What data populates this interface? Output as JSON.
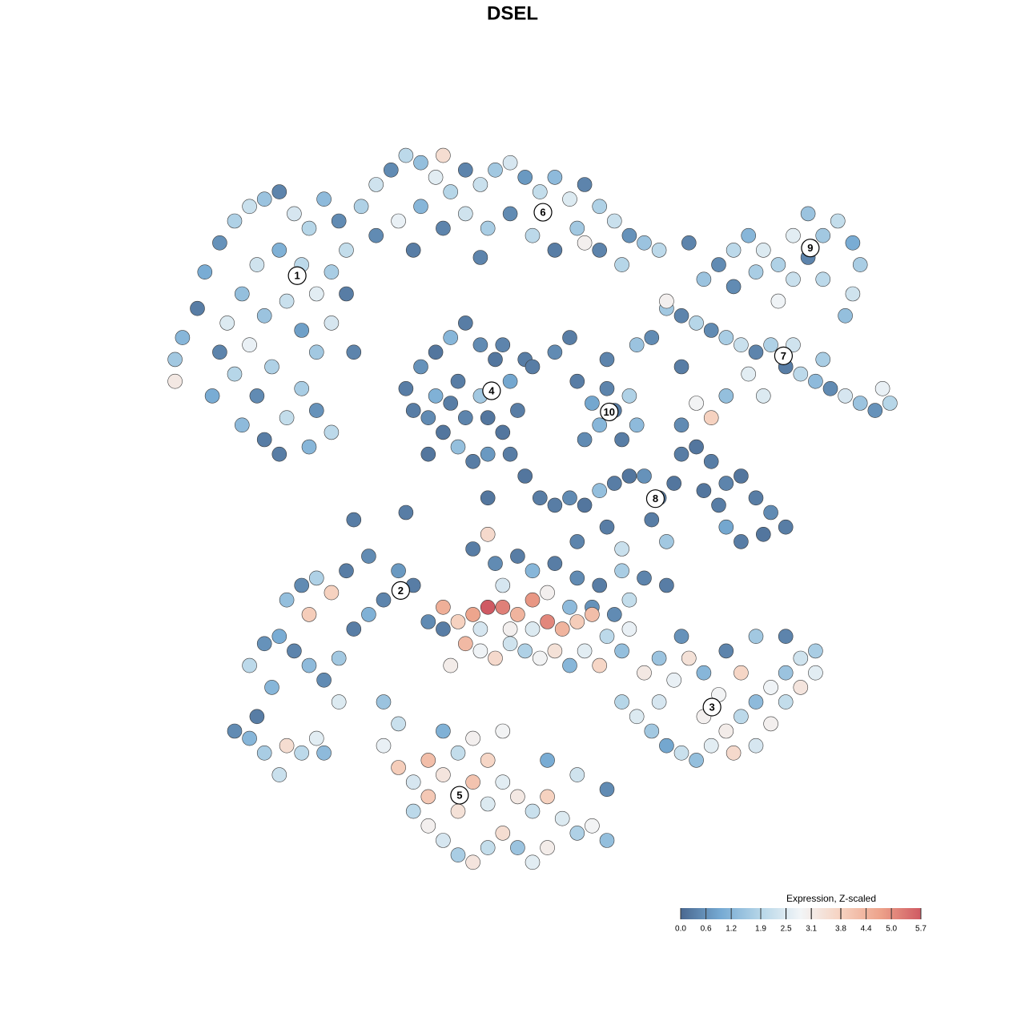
{
  "chart_data": {
    "type": "scatter",
    "title": "DSEL",
    "xlim": [
      0,
      100
    ],
    "ylim": [
      0,
      100
    ],
    "colorscale": {
      "title": "Expression, Z-scaled",
      "range": [
        0,
        5.7
      ],
      "colors": [
        "#4a6890",
        "#76aad3",
        "#b6d6e8",
        "#f2f5f7",
        "#f6d2c0",
        "#eda28a",
        "#cf5a63"
      ],
      "ticks": [
        {
          "value": 0,
          "label": "0.0"
        },
        0.6,
        1.2,
        1.9,
        2.5,
        3.1,
        3.8,
        4.4,
        {
          "value": 5,
          "label": "5.0"
        },
        5.7
      ]
    },
    "annotations": [
      {
        "text": "1",
        "x": 18.4,
        "y": 82.5
      },
      {
        "text": "2",
        "x": 32.3,
        "y": 39.3
      },
      {
        "text": "3",
        "x": 74.1,
        "y": 23.3
      },
      {
        "text": "4",
        "x": 44.5,
        "y": 66.7
      },
      {
        "text": "5",
        "x": 40.2,
        "y": 11.2
      },
      {
        "text": "6",
        "x": 51.4,
        "y": 91.2
      },
      {
        "text": "7",
        "x": 83.7,
        "y": 71.5
      },
      {
        "text": "8",
        "x": 66.5,
        "y": 51.9
      },
      {
        "text": "9",
        "x": 87.3,
        "y": 86.3
      },
      {
        "text": "10",
        "x": 60.3,
        "y": 63.8
      }
    ],
    "points": [
      [
        3,
        74,
        1.2
      ],
      [
        5,
        78,
        0.3
      ],
      [
        2,
        71,
        1.6
      ],
      [
        6,
        83,
        1.0
      ],
      [
        8,
        87,
        0.6
      ],
      [
        10,
        90,
        1.8
      ],
      [
        12,
        92,
        2.2
      ],
      [
        14,
        93,
        1.5
      ],
      [
        16,
        94,
        0.4
      ],
      [
        18,
        91,
        2.4
      ],
      [
        20,
        89,
        1.9
      ],
      [
        22,
        93,
        1.3
      ],
      [
        24,
        90,
        0.5
      ],
      [
        25,
        86,
        2.1
      ],
      [
        23,
        83,
        1.7
      ],
      [
        21,
        80,
        2.6
      ],
      [
        19,
        84,
        2.0
      ],
      [
        16,
        86,
        1.1
      ],
      [
        13,
        84,
        2.3
      ],
      [
        11,
        80,
        1.4
      ],
      [
        9,
        76,
        2.5
      ],
      [
        8,
        72,
        0.4
      ],
      [
        10,
        69,
        1.9
      ],
      [
        12,
        73,
        2.7
      ],
      [
        14,
        77,
        1.5
      ],
      [
        17,
        79,
        2.2
      ],
      [
        19,
        75,
        0.8
      ],
      [
        21,
        72,
        1.6
      ],
      [
        23,
        76,
        2.4
      ],
      [
        25,
        80,
        0.3
      ],
      [
        15,
        70,
        1.8
      ],
      [
        13,
        66,
        0.5
      ],
      [
        11,
        62,
        1.3
      ],
      [
        14,
        60,
        0.3
      ],
      [
        17,
        63,
        2.1
      ],
      [
        19,
        67,
        1.7
      ],
      [
        21,
        64,
        0.6
      ],
      [
        23,
        61,
        2.0
      ],
      [
        16,
        58,
        0.3
      ],
      [
        20,
        59,
        1.2
      ],
      [
        2,
        68,
        3.2
      ],
      [
        7,
        66,
        1.0
      ],
      [
        26,
        72,
        0.4
      ],
      [
        27,
        92,
        1.8
      ],
      [
        29,
        95,
        2.3
      ],
      [
        31,
        97,
        0.5
      ],
      [
        33,
        99,
        2.0
      ],
      [
        35,
        98,
        1.4
      ],
      [
        37,
        96,
        2.6
      ],
      [
        39,
        94,
        1.9
      ],
      [
        41,
        97,
        0.4
      ],
      [
        43,
        95,
        2.2
      ],
      [
        45,
        97,
        1.6
      ],
      [
        47,
        98,
        2.4
      ],
      [
        49,
        96,
        0.7
      ],
      [
        51,
        94,
        2.1
      ],
      [
        53,
        96,
        1.3
      ],
      [
        55,
        93,
        2.5
      ],
      [
        57,
        95,
        0.4
      ],
      [
        59,
        92,
        1.8
      ],
      [
        61,
        90,
        2.2
      ],
      [
        63,
        88,
        0.6
      ],
      [
        65,
        87,
        1.5
      ],
      [
        67,
        86,
        2.0
      ],
      [
        29,
        88,
        0.5
      ],
      [
        32,
        90,
        2.7
      ],
      [
        35,
        92,
        1.2
      ],
      [
        38,
        89,
        0.4
      ],
      [
        41,
        91,
        2.3
      ],
      [
        44,
        89,
        1.7
      ],
      [
        47,
        91,
        0.5
      ],
      [
        50,
        88,
        2.0
      ],
      [
        53,
        86,
        0.3
      ],
      [
        56,
        89,
        1.6
      ],
      [
        59,
        86,
        0.4
      ],
      [
        62,
        84,
        1.9
      ],
      [
        34,
        86,
        0.3
      ],
      [
        43,
        85,
        0.4
      ],
      [
        38,
        99,
        3.5
      ],
      [
        57,
        87,
        3.0
      ],
      [
        33,
        67,
        0.3
      ],
      [
        35,
        70,
        0.6
      ],
      [
        37,
        72,
        0.2
      ],
      [
        39,
        74,
        1.2
      ],
      [
        41,
        76,
        0.3
      ],
      [
        43,
        73,
        0.5
      ],
      [
        45,
        71,
        0.2
      ],
      [
        47,
        68,
        0.9
      ],
      [
        48,
        64,
        0.3
      ],
      [
        46,
        61,
        0.2
      ],
      [
        44,
        58,
        0.7
      ],
      [
        42,
        57,
        0.3
      ],
      [
        40,
        59,
        1.4
      ],
      [
        38,
        61,
        0.2
      ],
      [
        36,
        63,
        0.5
      ],
      [
        34,
        64,
        0.3
      ],
      [
        37,
        66,
        1.1
      ],
      [
        40,
        68,
        0.3
      ],
      [
        43,
        66,
        1.6
      ],
      [
        41,
        63,
        0.4
      ],
      [
        44,
        63,
        0.2
      ],
      [
        39,
        65,
        0.3
      ],
      [
        36,
        58,
        0.2
      ],
      [
        46,
        73,
        0.4
      ],
      [
        49,
        71,
        0.3
      ],
      [
        50,
        70,
        0.3
      ],
      [
        53,
        72,
        0.5
      ],
      [
        55,
        74,
        0.3
      ],
      [
        47,
        58,
        0.3
      ],
      [
        49,
        55,
        0.2
      ],
      [
        51,
        52,
        0.3
      ],
      [
        44,
        52,
        0.2
      ],
      [
        26,
        49,
        0.3
      ],
      [
        33,
        50,
        0.3
      ],
      [
        57,
        60,
        0.5
      ],
      [
        59,
        62,
        1.2
      ],
      [
        61,
        64,
        0.3
      ],
      [
        63,
        66,
        1.8
      ],
      [
        60,
        67,
        0.4
      ],
      [
        58,
        65,
        0.9
      ],
      [
        62,
        60,
        0.3
      ],
      [
        64,
        62,
        1.3
      ],
      [
        56,
        68,
        0.3
      ],
      [
        60,
        71,
        0.4
      ],
      [
        64,
        73,
        1.5
      ],
      [
        68,
        78,
        1.6
      ],
      [
        70,
        77,
        0.4
      ],
      [
        72,
        76,
        1.9
      ],
      [
        74,
        75,
        0.5
      ],
      [
        76,
        74,
        1.7
      ],
      [
        78,
        73,
        2.2
      ],
      [
        80,
        72,
        0.4
      ],
      [
        82,
        73,
        1.8
      ],
      [
        84,
        70,
        0.3
      ],
      [
        86,
        69,
        2.0
      ],
      [
        88,
        68,
        1.3
      ],
      [
        90,
        67,
        0.5
      ],
      [
        92,
        66,
        2.4
      ],
      [
        94,
        65,
        1.5
      ],
      [
        96,
        64,
        0.6
      ],
      [
        98,
        65,
        1.9
      ],
      [
        97,
        67,
        2.7
      ],
      [
        89,
        71,
        1.7
      ],
      [
        85,
        73,
        2.3
      ],
      [
        79,
        69,
        2.6
      ],
      [
        76,
        66,
        1.4
      ],
      [
        72,
        65,
        2.9
      ],
      [
        74,
        63,
        3.8
      ],
      [
        70,
        70,
        0.3
      ],
      [
        66,
        74,
        0.5
      ],
      [
        81,
        66,
        2.5
      ],
      [
        73,
        82,
        1.5
      ],
      [
        75,
        84,
        0.5
      ],
      [
        77,
        86,
        2.0
      ],
      [
        79,
        88,
        1.2
      ],
      [
        81,
        86,
        2.5
      ],
      [
        83,
        84,
        1.8
      ],
      [
        85,
        82,
        2.2
      ],
      [
        87,
        85,
        0.4
      ],
      [
        89,
        88,
        1.6
      ],
      [
        91,
        90,
        2.1
      ],
      [
        93,
        87,
        1.0
      ],
      [
        94,
        84,
        1.7
      ],
      [
        93,
        80,
        2.3
      ],
      [
        92,
        77,
        1.4
      ],
      [
        89,
        82,
        2.0
      ],
      [
        87,
        91,
        1.5
      ],
      [
        85,
        88,
        2.6
      ],
      [
        80,
        83,
        1.7
      ],
      [
        77,
        81,
        0.5
      ],
      [
        83,
        79,
        2.8
      ],
      [
        71,
        87,
        0.4
      ],
      [
        68,
        79,
        3.0
      ],
      [
        53,
        51,
        0.3
      ],
      [
        55,
        52,
        0.5
      ],
      [
        57,
        51,
        0.2
      ],
      [
        59,
        53,
        1.4
      ],
      [
        61,
        54,
        0.3
      ],
      [
        63,
        55,
        0.2
      ],
      [
        65,
        55,
        0.6
      ],
      [
        67,
        52,
        0.3
      ],
      [
        69,
        54,
        0.2
      ],
      [
        70,
        58,
        0.3
      ],
      [
        70,
        62,
        0.5
      ],
      [
        72,
        59,
        0.2
      ],
      [
        74,
        57,
        0.3
      ],
      [
        76,
        54,
        0.4
      ],
      [
        78,
        55,
        0.2
      ],
      [
        80,
        52,
        0.3
      ],
      [
        82,
        50,
        0.5
      ],
      [
        84,
        48,
        0.3
      ],
      [
        81,
        47,
        0.2
      ],
      [
        78,
        46,
        0.3
      ],
      [
        76,
        48,
        0.9
      ],
      [
        75,
        51,
        0.3
      ],
      [
        73,
        53,
        0.2
      ],
      [
        68,
        46,
        1.6
      ],
      [
        60,
        48,
        0.3
      ],
      [
        56,
        46,
        0.4
      ],
      [
        62,
        45,
        2.2
      ],
      [
        66,
        49,
        0.3
      ],
      [
        42,
        45,
        0.3
      ],
      [
        45,
        43,
        0.5
      ],
      [
        48,
        44,
        0.3
      ],
      [
        50,
        42,
        1.2
      ],
      [
        53,
        43,
        0.3
      ],
      [
        56,
        41,
        0.5
      ],
      [
        59,
        40,
        0.3
      ],
      [
        62,
        42,
        1.7
      ],
      [
        65,
        41,
        0.4
      ],
      [
        68,
        40,
        0.3
      ],
      [
        46,
        40,
        2.4
      ],
      [
        52,
        39,
        3.0
      ],
      [
        58,
        37,
        0.6
      ],
      [
        63,
        38,
        2.1
      ],
      [
        44,
        47,
        3.6
      ],
      [
        14,
        32,
        0.6
      ],
      [
        16,
        33,
        1.0
      ],
      [
        18,
        31,
        0.4
      ],
      [
        20,
        29,
        1.3
      ],
      [
        22,
        27,
        0.5
      ],
      [
        24,
        30,
        1.6
      ],
      [
        26,
        34,
        0.3
      ],
      [
        28,
        36,
        1.1
      ],
      [
        30,
        38,
        0.4
      ],
      [
        32,
        42,
        0.7
      ],
      [
        34,
        40,
        0.3
      ],
      [
        36,
        35,
        0.5
      ],
      [
        38,
        34,
        0.3
      ],
      [
        17,
        38,
        1.4
      ],
      [
        19,
        40,
        0.5
      ],
      [
        21,
        41,
        1.8
      ],
      [
        23,
        39,
        3.8
      ],
      [
        25,
        42,
        0.3
      ],
      [
        28,
        44,
        0.5
      ],
      [
        20,
        36,
        3.9
      ],
      [
        12,
        29,
        2.0
      ],
      [
        15,
        26,
        1.2
      ],
      [
        24,
        24,
        2.5
      ],
      [
        40,
        35,
        3.8
      ],
      [
        42,
        36,
        4.7
      ],
      [
        44,
        37,
        5.7
      ],
      [
        46,
        37,
        5.2
      ],
      [
        48,
        36,
        4.4
      ],
      [
        50,
        34,
        2.5
      ],
      [
        52,
        35,
        5.1
      ],
      [
        54,
        34,
        4.4
      ],
      [
        56,
        35,
        3.9
      ],
      [
        58,
        36,
        4.2
      ],
      [
        60,
        33,
        2.0
      ],
      [
        62,
        31,
        1.4
      ],
      [
        41,
        32,
        4.3
      ],
      [
        43,
        31,
        2.8
      ],
      [
        45,
        30,
        3.6
      ],
      [
        47,
        32,
        2.3
      ],
      [
        49,
        31,
        1.8
      ],
      [
        51,
        30,
        2.9
      ],
      [
        53,
        31,
        3.4
      ],
      [
        55,
        29,
        1.2
      ],
      [
        57,
        31,
        2.6
      ],
      [
        59,
        29,
        3.7
      ],
      [
        39,
        29,
        3.1
      ],
      [
        43,
        34,
        2.4
      ],
      [
        47,
        34,
        3.0
      ],
      [
        55,
        37,
        1.3
      ],
      [
        50,
        38,
        4.9
      ],
      [
        38,
        37,
        4.5
      ],
      [
        61,
        36,
        0.5
      ],
      [
        63,
        34,
        2.7
      ],
      [
        62,
        24,
        1.9
      ],
      [
        64,
        22,
        2.5
      ],
      [
        66,
        20,
        1.6
      ],
      [
        68,
        18,
        0.9
      ],
      [
        70,
        17,
        2.2
      ],
      [
        72,
        16,
        1.4
      ],
      [
        74,
        18,
        2.6
      ],
      [
        76,
        20,
        3.1
      ],
      [
        78,
        22,
        2.0
      ],
      [
        80,
        24,
        1.3
      ],
      [
        82,
        26,
        2.8
      ],
      [
        84,
        28,
        1.5
      ],
      [
        86,
        30,
        2.3
      ],
      [
        88,
        31,
        1.7
      ],
      [
        88,
        28,
        2.6
      ],
      [
        86,
        26,
        3.3
      ],
      [
        84,
        24,
        2.1
      ],
      [
        82,
        21,
        3.0
      ],
      [
        80,
        18,
        2.4
      ],
      [
        77,
        17,
        3.6
      ],
      [
        75,
        25,
        2.9
      ],
      [
        73,
        28,
        1.2
      ],
      [
        71,
        30,
        3.4
      ],
      [
        69,
        27,
        2.7
      ],
      [
        67,
        30,
        1.5
      ],
      [
        65,
        28,
        3.2
      ],
      [
        70,
        33,
        0.6
      ],
      [
        76,
        31,
        0.4
      ],
      [
        80,
        33,
        1.6
      ],
      [
        84,
        33,
        0.4
      ],
      [
        78,
        28,
        3.7
      ],
      [
        73,
        22,
        3.0
      ],
      [
        67,
        24,
        2.4
      ],
      [
        30,
        18,
        2.7
      ],
      [
        32,
        15,
        3.9
      ],
      [
        34,
        13,
        2.4
      ],
      [
        36,
        16,
        4.2
      ],
      [
        38,
        14,
        3.3
      ],
      [
        40,
        17,
        2.1
      ],
      [
        42,
        19,
        3.0
      ],
      [
        44,
        16,
        3.7
      ],
      [
        46,
        13,
        2.6
      ],
      [
        48,
        11,
        3.2
      ],
      [
        50,
        9,
        2.2
      ],
      [
        52,
        11,
        3.8
      ],
      [
        54,
        8,
        2.5
      ],
      [
        56,
        6,
        1.8
      ],
      [
        58,
        7,
        2.9
      ],
      [
        60,
        5,
        1.4
      ],
      [
        34,
        9,
        2.0
      ],
      [
        36,
        7,
        3.0
      ],
      [
        38,
        5,
        2.4
      ],
      [
        40,
        3,
        1.7
      ],
      [
        42,
        2,
        3.3
      ],
      [
        44,
        4,
        2.1
      ],
      [
        46,
        6,
        3.5
      ],
      [
        48,
        4,
        1.5
      ],
      [
        50,
        2,
        2.6
      ],
      [
        52,
        4,
        3.1
      ],
      [
        36,
        11,
        4.0
      ],
      [
        40,
        9,
        3.4
      ],
      [
        44,
        10,
        2.5
      ],
      [
        42,
        13,
        4.1
      ],
      [
        38,
        20,
        1.1
      ],
      [
        32,
        21,
        2.2
      ],
      [
        30,
        24,
        1.5
      ],
      [
        46,
        20,
        2.9
      ],
      [
        52,
        16,
        1.0
      ],
      [
        56,
        14,
        2.3
      ],
      [
        60,
        12,
        0.5
      ],
      [
        10,
        20,
        0.5
      ],
      [
        12,
        19,
        1.2
      ],
      [
        14,
        17,
        1.7
      ],
      [
        17,
        18,
        3.5
      ],
      [
        19,
        17,
        2.0
      ],
      [
        21,
        19,
        2.6
      ],
      [
        16,
        14,
        2.2
      ],
      [
        22,
        17,
        1.3
      ],
      [
        13,
        22,
        0.3
      ]
    ]
  }
}
